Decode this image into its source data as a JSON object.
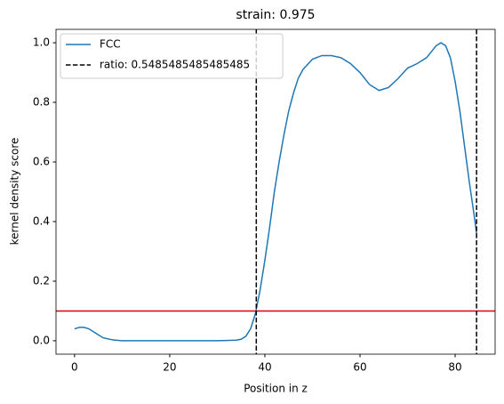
{
  "chart_data": {
    "type": "line",
    "title": "strain: 0.975",
    "xlabel": "Position in z",
    "ylabel": "kernel density score",
    "x": [
      0,
      1,
      2,
      3,
      4,
      5,
      6,
      8,
      10,
      15,
      20,
      25,
      30,
      34,
      35,
      36,
      37,
      38,
      39,
      40,
      41,
      42,
      43,
      44,
      45,
      46,
      47,
      48,
      50,
      52,
      54,
      56,
      58,
      60,
      62,
      64,
      66,
      68,
      70,
      72,
      74,
      76,
      77,
      78,
      79,
      80,
      81,
      82,
      83,
      84,
      84.5
    ],
    "series": [
      {
        "name": "FCC",
        "color": "#1f77b4",
        "values": [
          0.04,
          0.045,
          0.045,
          0.04,
          0.03,
          0.02,
          0.01,
          0.003,
          0.0,
          0.0,
          0.0,
          0.0,
          0.0,
          0.002,
          0.005,
          0.015,
          0.04,
          0.09,
          0.17,
          0.27,
          0.38,
          0.5,
          0.6,
          0.69,
          0.77,
          0.83,
          0.88,
          0.91,
          0.945,
          0.957,
          0.957,
          0.95,
          0.93,
          0.9,
          0.86,
          0.84,
          0.85,
          0.88,
          0.915,
          0.93,
          0.95,
          0.99,
          1.0,
          0.99,
          0.95,
          0.87,
          0.77,
          0.65,
          0.53,
          0.42,
          0.36
        ]
      }
    ],
    "vlines": {
      "name": "ratio: 0.5485485485485485",
      "color": "#000000",
      "style": "dashed",
      "x": [
        38.2,
        84.5
      ]
    },
    "hline": {
      "y": 0.1,
      "color": "#e00000"
    },
    "xlim": [
      -3.9,
      88.4
    ],
    "ylim": [
      -0.045,
      1.045
    ],
    "xticks": [
      0,
      20,
      40,
      60,
      80
    ],
    "yticks": [
      {
        "value": 0,
        "label": "0.0"
      },
      0.2,
      0.4,
      0.6,
      0.8,
      {
        "value": 1,
        "label": "1.0"
      }
    ],
    "grid": false,
    "legend": "upper left"
  }
}
